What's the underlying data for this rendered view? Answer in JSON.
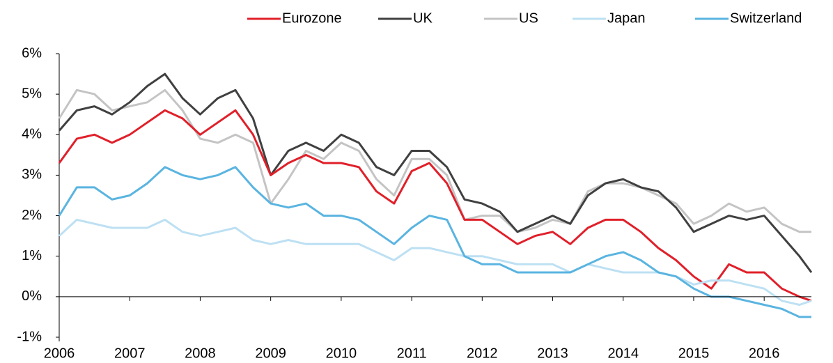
{
  "chart_data": {
    "type": "line",
    "x": [
      2006,
      2006.25,
      2006.5,
      2006.75,
      2007,
      2007.25,
      2007.5,
      2007.75,
      2008,
      2008.25,
      2008.5,
      2008.75,
      2009,
      2009.25,
      2009.5,
      2009.75,
      2010,
      2010.25,
      2010.5,
      2010.75,
      2011,
      2011.25,
      2011.5,
      2011.75,
      2012,
      2012.25,
      2012.5,
      2012.75,
      2013,
      2013.25,
      2013.5,
      2013.75,
      2014,
      2014.25,
      2014.5,
      2014.75,
      2015,
      2015.25,
      2015.5,
      2015.75,
      2016,
      2016.25,
      2016.5,
      2016.67
    ],
    "series": [
      {
        "name": "US",
        "color": "#c4c4c4",
        "values": [
          4.4,
          5.1,
          5.0,
          4.6,
          4.7,
          4.8,
          5.1,
          4.6,
          3.9,
          3.8,
          4.0,
          3.8,
          2.3,
          2.9,
          3.6,
          3.4,
          3.8,
          3.6,
          2.9,
          2.5,
          3.4,
          3.4,
          3.0,
          1.9,
          2.0,
          2.0,
          1.6,
          1.7,
          1.9,
          1.8,
          2.6,
          2.8,
          2.8,
          2.7,
          2.5,
          2.3,
          1.8,
          2.0,
          2.3,
          2.1,
          2.2,
          1.8,
          1.6,
          1.6
        ]
      },
      {
        "name": "UK",
        "color": "#404040",
        "values": [
          4.1,
          4.6,
          4.7,
          4.5,
          4.8,
          5.2,
          5.5,
          4.9,
          4.5,
          4.9,
          5.1,
          4.4,
          3.0,
          3.6,
          3.8,
          3.6,
          4.0,
          3.8,
          3.2,
          3.0,
          3.6,
          3.6,
          3.2,
          2.4,
          2.3,
          2.1,
          1.6,
          1.8,
          2.0,
          1.8,
          2.5,
          2.8,
          2.9,
          2.7,
          2.6,
          2.2,
          1.6,
          1.8,
          2.0,
          1.9,
          2.0,
          1.5,
          1.0,
          0.6
        ]
      },
      {
        "name": "Eurozone",
        "color": "#e0202a",
        "values": [
          3.3,
          3.9,
          4.0,
          3.8,
          4.0,
          4.3,
          4.6,
          4.4,
          4.0,
          4.3,
          4.6,
          4.0,
          3.0,
          3.3,
          3.5,
          3.3,
          3.3,
          3.2,
          2.6,
          2.3,
          3.1,
          3.3,
          2.8,
          1.9,
          1.9,
          1.6,
          1.3,
          1.5,
          1.6,
          1.3,
          1.7,
          1.9,
          1.9,
          1.6,
          1.2,
          0.9,
          0.5,
          0.2,
          0.8,
          0.6,
          0.6,
          0.2,
          0.0,
          -0.1
        ]
      },
      {
        "name": "Japan",
        "color": "#bde0f3",
        "values": [
          1.5,
          1.9,
          1.8,
          1.7,
          1.7,
          1.7,
          1.9,
          1.6,
          1.5,
          1.6,
          1.7,
          1.4,
          1.3,
          1.4,
          1.3,
          1.3,
          1.3,
          1.3,
          1.1,
          0.9,
          1.2,
          1.2,
          1.1,
          1.0,
          1.0,
          0.9,
          0.8,
          0.8,
          0.8,
          0.6,
          0.8,
          0.7,
          0.6,
          0.6,
          0.6,
          0.5,
          0.3,
          0.4,
          0.4,
          0.3,
          0.2,
          -0.1,
          -0.2,
          -0.1
        ]
      },
      {
        "name": "Switzerland",
        "color": "#5ab4e0",
        "values": [
          2.0,
          2.7,
          2.7,
          2.4,
          2.5,
          2.8,
          3.2,
          3.0,
          2.9,
          3.0,
          3.2,
          2.7,
          2.3,
          2.2,
          2.3,
          2.0,
          2.0,
          1.9,
          1.6,
          1.3,
          1.7,
          2.0,
          1.9,
          1.0,
          0.8,
          0.8,
          0.6,
          0.6,
          0.6,
          0.6,
          0.8,
          1.0,
          1.1,
          0.9,
          0.6,
          0.5,
          0.2,
          0.0,
          0.0,
          -0.1,
          -0.2,
          -0.3,
          -0.5,
          -0.5
        ]
      }
    ],
    "legend_order": [
      "Eurozone",
      "UK",
      "US",
      "Japan",
      "Switzerland"
    ],
    "xlim": [
      2006,
      2016.67
    ],
    "xticks": [
      2006,
      2007,
      2008,
      2009,
      2010,
      2011,
      2012,
      2013,
      2014,
      2015,
      2016
    ],
    "ylim": [
      -1,
      6
    ],
    "yticks": [
      {
        "value": -1,
        "label": "-1%"
      },
      {
        "value": 0,
        "label": "0%"
      },
      {
        "value": 1,
        "label": "1%"
      },
      {
        "value": 2,
        "label": "2%"
      },
      {
        "value": 3,
        "label": "3%"
      },
      {
        "value": 4,
        "label": "4%"
      },
      {
        "value": 5,
        "label": "5%"
      },
      {
        "value": 6,
        "label": "6%"
      }
    ],
    "grid": false,
    "legend": "top-right"
  }
}
